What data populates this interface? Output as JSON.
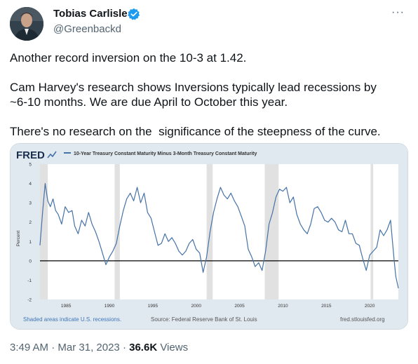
{
  "author": {
    "name": "Tobias Carlisle",
    "handle": "@Greenbackd"
  },
  "tweet": {
    "line1": "Another record inversion on the 10-3 at 1.42.",
    "line2": "Cam Harvey's research shows Inversions typically lead recessions by",
    "line3": "~6-10 months. We are due April to October this year.",
    "line4": "There's no research on the  significance of the steepness of the curve."
  },
  "meta": {
    "time": "3:49 AM",
    "separator": "·",
    "date": "Mar 31, 2023",
    "views_count": "36.6K",
    "views_label": "Views"
  },
  "icons": {
    "avatar": "avatar-photo",
    "verified": "verified-badge-icon",
    "more": "more-options-icon"
  },
  "colors": {
    "verified": "#1d9bf0",
    "series": "#4572a7",
    "recession": "#e1e1e1",
    "chart_bg": "#e1e9f0"
  },
  "chart_data": {
    "type": "line",
    "brand": "FRED",
    "legend": "10-Year Treasury Constant Maturity Minus 3-Month Treasury Constant Maturity",
    "ylabel": "Percent",
    "xlim": [
      1982.0,
      2023.3
    ],
    "ylim": [
      -2,
      5
    ],
    "yticks": [
      -2,
      -1,
      0,
      1,
      2,
      3,
      4,
      5
    ],
    "xticks": [
      1985,
      1990,
      1995,
      2000,
      2005,
      2010,
      2015,
      2020
    ],
    "grid": false,
    "recessions": [
      [
        1982.0,
        1982.9
      ],
      [
        1990.6,
        1991.2
      ],
      [
        2001.2,
        2001.9
      ],
      [
        2007.9,
        2009.5
      ],
      [
        2020.1,
        2020.4
      ]
    ],
    "series": [
      {
        "x": [
          1982.0,
          1982.3,
          1982.6,
          1982.9,
          1983.2,
          1983.5,
          1983.8,
          1984.1,
          1984.5,
          1984.9,
          1985.3,
          1985.7,
          1986.0,
          1986.4,
          1986.8,
          1987.2,
          1987.6,
          1988.0,
          1988.4,
          1988.8,
          1989.2,
          1989.6,
          1990.0,
          1990.4,
          1990.8,
          1991.2,
          1991.6,
          1992.0,
          1992.4,
          1992.8,
          1993.2,
          1993.6,
          1994.0,
          1994.4,
          1994.8,
          1995.2,
          1995.6,
          1996.0,
          1996.4,
          1996.8,
          1997.2,
          1997.6,
          1998.0,
          1998.4,
          1998.8,
          1999.2,
          1999.6,
          2000.0,
          2000.4,
          2000.8,
          2001.2,
          2001.6,
          2002.0,
          2002.4,
          2002.8,
          2003.2,
          2003.6,
          2004.0,
          2004.4,
          2004.8,
          2005.2,
          2005.6,
          2006.0,
          2006.4,
          2006.8,
          2007.2,
          2007.6,
          2008.0,
          2008.4,
          2008.8,
          2009.2,
          2009.6,
          2010.0,
          2010.4,
          2010.8,
          2011.2,
          2011.6,
          2012.0,
          2012.4,
          2012.8,
          2013.2,
          2013.6,
          2014.0,
          2014.4,
          2014.8,
          2015.2,
          2015.6,
          2016.0,
          2016.4,
          2016.8,
          2017.2,
          2017.6,
          2018.0,
          2018.4,
          2018.8,
          2019.2,
          2019.6,
          2020.0,
          2020.4,
          2020.8,
          2021.2,
          2021.6,
          2022.0,
          2022.4,
          2022.8,
          2023.0,
          2023.3
        ],
        "y": [
          0.8,
          2.5,
          4.0,
          3.1,
          2.8,
          3.2,
          2.6,
          2.4,
          1.9,
          2.8,
          2.5,
          2.6,
          1.8,
          1.4,
          2.1,
          1.8,
          2.5,
          1.9,
          1.5,
          1.0,
          0.4,
          -0.2,
          0.2,
          0.5,
          0.9,
          1.8,
          2.6,
          3.2,
          3.5,
          3.1,
          3.8,
          3.0,
          3.5,
          2.5,
          2.2,
          1.5,
          0.8,
          0.9,
          1.4,
          1.0,
          1.2,
          0.9,
          0.5,
          0.3,
          0.5,
          0.9,
          1.1,
          0.6,
          0.4,
          -0.6,
          0.2,
          1.5,
          2.5,
          3.2,
          3.8,
          3.4,
          3.2,
          3.5,
          3.1,
          2.8,
          2.3,
          1.8,
          0.6,
          0.2,
          -0.3,
          -0.1,
          -0.5,
          0.5,
          1.9,
          2.5,
          3.3,
          3.7,
          3.6,
          3.8,
          3.0,
          3.3,
          2.4,
          1.9,
          1.6,
          1.4,
          1.9,
          2.7,
          2.8,
          2.5,
          2.1,
          2.0,
          2.2,
          2.0,
          1.6,
          1.5,
          2.1,
          1.4,
          1.4,
          0.9,
          0.8,
          0.1,
          -0.5,
          0.3,
          0.5,
          0.7,
          1.6,
          1.3,
          1.6,
          2.1,
          0.1,
          -0.8,
          -1.42
        ]
      }
    ],
    "footer_left": "Shaded areas indicate U.S. recessions.",
    "footer_center": "Source: Federal Reserve Bank of St. Louis",
    "footer_right": "fred.stlouisfed.org"
  }
}
